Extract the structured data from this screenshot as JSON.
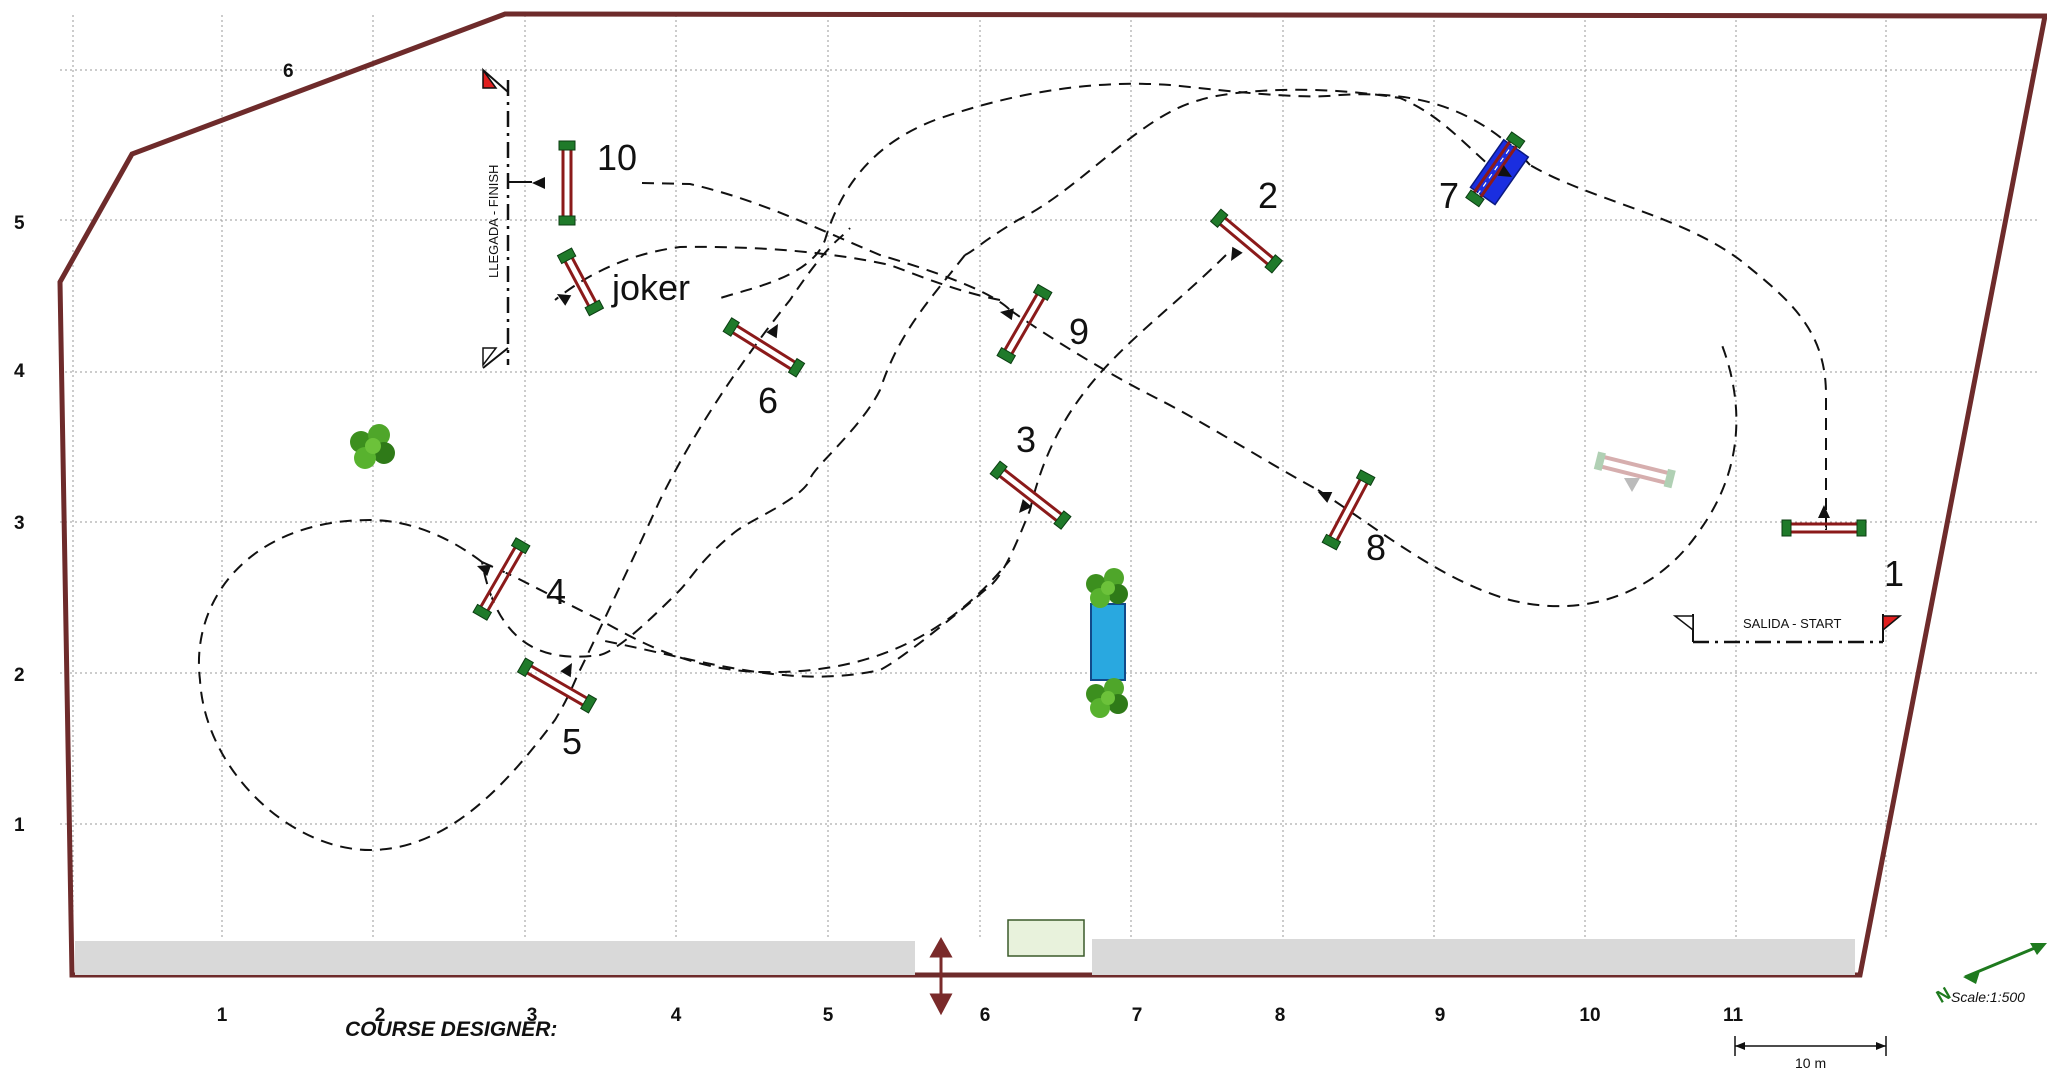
{
  "grid": {
    "x_labels": [
      "1",
      "2",
      "3",
      "4",
      "5",
      "6",
      "7",
      "8",
      "9",
      "10",
      "11"
    ],
    "y_labels": [
      "1",
      "2",
      "3",
      "4",
      "5"
    ],
    "side_label": "6"
  },
  "fences": [
    {
      "id": "f1",
      "label": "1"
    },
    {
      "id": "f2",
      "label": "2"
    },
    {
      "id": "f3",
      "label": "3"
    },
    {
      "id": "f4",
      "label": "4"
    },
    {
      "id": "f5",
      "label": "5"
    },
    {
      "id": "f6",
      "label": "6"
    },
    {
      "id": "f7",
      "label": "7"
    },
    {
      "id": "f8",
      "label": "8"
    },
    {
      "id": "f9",
      "label": "9"
    },
    {
      "id": "f10",
      "label": "10"
    },
    {
      "id": "joker",
      "label": "joker"
    }
  ],
  "start_label": "SALIDA - START",
  "finish_label": "LLEGADA - FINISH",
  "course_designer_label": "COURSE DESIGNER:",
  "scale_label": "Scale:1:500",
  "scale_bar_label": "10 m",
  "north_label": "N",
  "colors": {
    "arena_border": "#6e2b2b",
    "rail": "#8b1a1a",
    "standard": "#1f7a2a",
    "water": "#29a8e0",
    "wall": "#1a2ee0",
    "compass": "#1e7a1e",
    "gate_arrow": "#7a2a2a"
  }
}
